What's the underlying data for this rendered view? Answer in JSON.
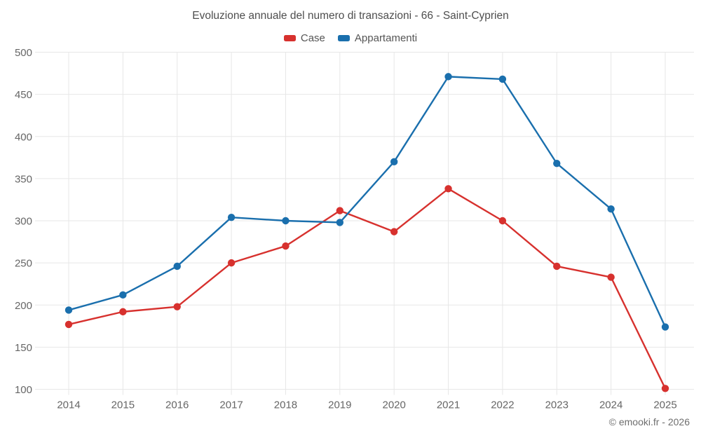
{
  "title": "Evoluzione annuale del numero di transazioni - 66 - Saint-Cyprien",
  "footer": "© emooki.fr - 2026",
  "legend": [
    {
      "label": "Case",
      "color": "#d7312e"
    },
    {
      "label": "Appartamenti",
      "color": "#1a6fad"
    }
  ],
  "colors": {
    "grid": "#e7e7e7",
    "tick_text": "#666666",
    "title_text": "#4e4e4e",
    "case_red": "#d7312e",
    "appartamenti_blue": "#1a6fad"
  },
  "chart_data": {
    "type": "line",
    "title": "Evoluzione annuale del numero di transazioni - 66 - Saint-Cyprien",
    "categories": [
      2014,
      2015,
      2016,
      2017,
      2018,
      2019,
      2020,
      2021,
      2022,
      2023,
      2024,
      2025
    ],
    "series": [
      {
        "name": "Case",
        "color": "#d7312e",
        "values": [
          177,
          192,
          198,
          250,
          270,
          312,
          287,
          338,
          300,
          246,
          233,
          101
        ]
      },
      {
        "name": "Appartamenti",
        "color": "#1a6fad",
        "values": [
          194,
          212,
          246,
          304,
          300,
          298,
          370,
          471,
          468,
          368,
          314,
          174
        ]
      }
    ],
    "xlabel": "",
    "ylabel": "",
    "ylim": [
      100,
      500
    ],
    "ytick_step": 50,
    "grid": true,
    "legend_position": "top"
  }
}
